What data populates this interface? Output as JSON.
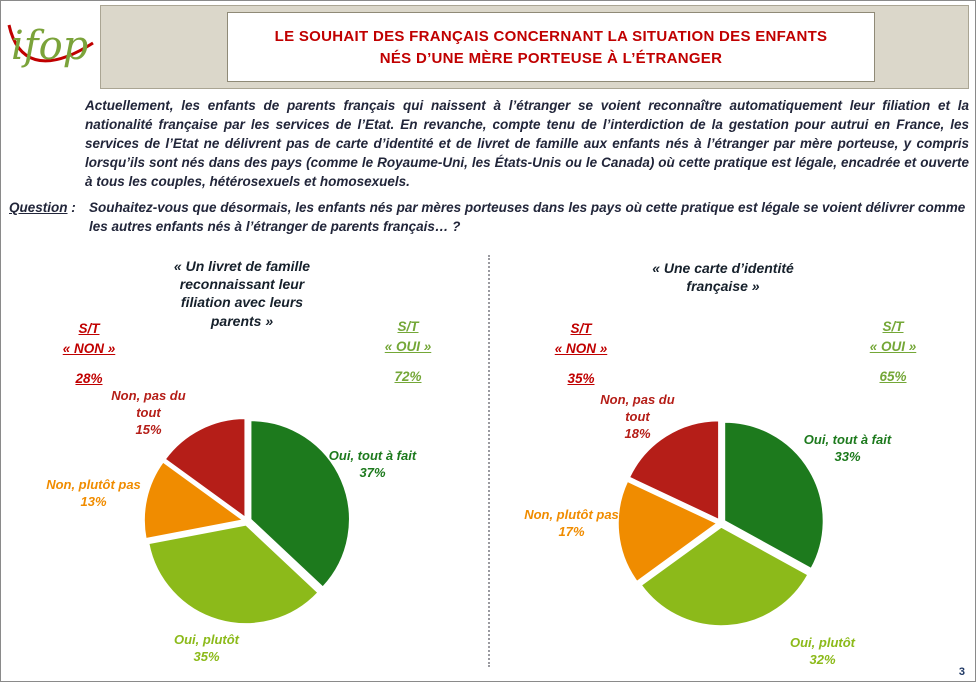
{
  "logo": {
    "text": "ifop"
  },
  "header": {
    "title_line1": "LE SOUHAIT DES FRANÇAIS CONCERNANT LA SITUATION DES ENFANTS",
    "title_line2": "NÉS D’UNE MÈRE PORTEUSE À L’ÉTRANGER"
  },
  "intro": "Actuellement, les enfants de parents français qui naissent à l’étranger se voient reconnaître automatiquement leur filiation et la nationalité française par les services de l’Etat. En revanche, compte tenu de l’interdiction de la gestation pour autrui en France, les services de l’Etat ne délivrent pas de carte d’identité et de livret de famille aux enfants nés à l’étranger par mère porteuse, y compris lorsqu’ils sont nés dans des pays (comme le Royaume-Uni, les États-Unis ou le Canada) où cette pratique est légale, encadrée et ouverte à tous les couples, hétérosexuels et homosexuels.",
  "question": {
    "label": "Question",
    "separator": " :",
    "text": "Souhaitez-vous que désormais, les enfants nés par mères porteuses dans les pays où cette pratique est légale se voient délivrer comme les autres enfants nés à l’étranger de parents français… ?"
  },
  "colors": {
    "title_red": "#c00000",
    "subtotal_non_red": "#c00000",
    "subtotal_oui_green": "#74a737",
    "header_band_beige": "#dbd7ca",
    "logo_green": "#7ba33a",
    "logo_red": "#c00000"
  },
  "chart_data": [
    {
      "type": "pie",
      "title": "« Un livret de famille reconnaissant leur filiation avec leurs parents »",
      "subtotal_non": {
        "prefix": "S/T",
        "label": "« NON »",
        "value": 28,
        "display": "28%"
      },
      "subtotal_oui": {
        "prefix": "S/T",
        "label": "« OUI »",
        "value": 72,
        "display": "72%"
      },
      "slices": [
        {
          "label": "Oui, tout à fait",
          "value": 37,
          "display": "37%",
          "color": "#1d7a1d"
        },
        {
          "label": "Oui, plutôt",
          "value": 35,
          "display": "35%",
          "color": "#8cba1a"
        },
        {
          "label": "Non, plutôt pas",
          "value": 13,
          "display": "13%",
          "color": "#f08c00"
        },
        {
          "label": "Non, pas du tout",
          "value": 15,
          "display": "15%",
          "color": "#b51e18"
        }
      ]
    },
    {
      "type": "pie",
      "title": "« Une carte d’identité française »",
      "subtotal_non": {
        "prefix": "S/T",
        "label": "« NON »",
        "value": 35,
        "display": "35%"
      },
      "subtotal_oui": {
        "prefix": "S/T",
        "label": "« OUI »",
        "value": 65,
        "display": "65%"
      },
      "slices": [
        {
          "label": "Oui, tout à fait",
          "value": 33,
          "display": "33%",
          "color": "#1d7a1d"
        },
        {
          "label": "Oui, plutôt",
          "value": 32,
          "display": "32%",
          "color": "#8cba1a"
        },
        {
          "label": "Non, plutôt pas",
          "value": 17,
          "display": "17%",
          "color": "#f08c00"
        },
        {
          "label": "Non, pas du tout",
          "value": 18,
          "display": "18%",
          "color": "#b51e18"
        }
      ]
    }
  ],
  "page_number": "3"
}
